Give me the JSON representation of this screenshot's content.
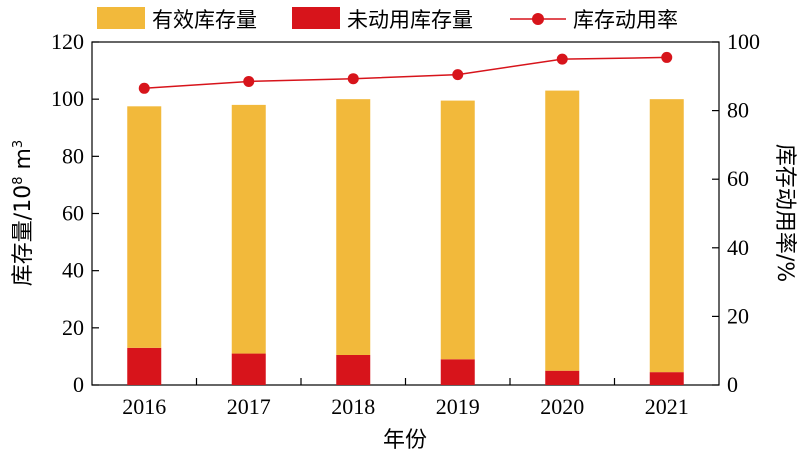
{
  "chart_data": {
    "type": "bar",
    "categories": [
      "2016",
      "2017",
      "2018",
      "2019",
      "2020",
      "2021"
    ],
    "series": [
      {
        "name": "有效库存量",
        "type": "bar",
        "stack": "total",
        "axis": "left",
        "color": "#F2B93B",
        "values": [
          84.5,
          87.0,
          89.5,
          90.5,
          98.0,
          95.5
        ]
      },
      {
        "name": "未动用库存量",
        "type": "bar",
        "stack": "total",
        "axis": "left",
        "color": "#D7141B",
        "values": [
          13.0,
          11.0,
          10.5,
          9.0,
          5.0,
          4.5
        ]
      },
      {
        "name": "库存动用率",
        "type": "line",
        "axis": "right",
        "color": "#D7141B",
        "values": [
          86.5,
          88.5,
          89.3,
          90.5,
          95.0,
          95.5
        ]
      }
    ],
    "xlabel": "年份",
    "ylabel": "库存量/10⁸ m³",
    "ylabel_parts": {
      "main": "库存量/10",
      "sup": "8",
      "unit": " m",
      "unit_sup": "3"
    },
    "y2label": "库存动用率/%",
    "ylim": [
      0,
      120
    ],
    "y2lim": [
      0,
      100
    ],
    "yticks": [
      "0",
      "20",
      "40",
      "60",
      "80",
      "100",
      "120"
    ],
    "y2ticks": [
      "0",
      "20",
      "40",
      "60",
      "80",
      "100"
    ],
    "legend_position": "top",
    "grid": false
  }
}
